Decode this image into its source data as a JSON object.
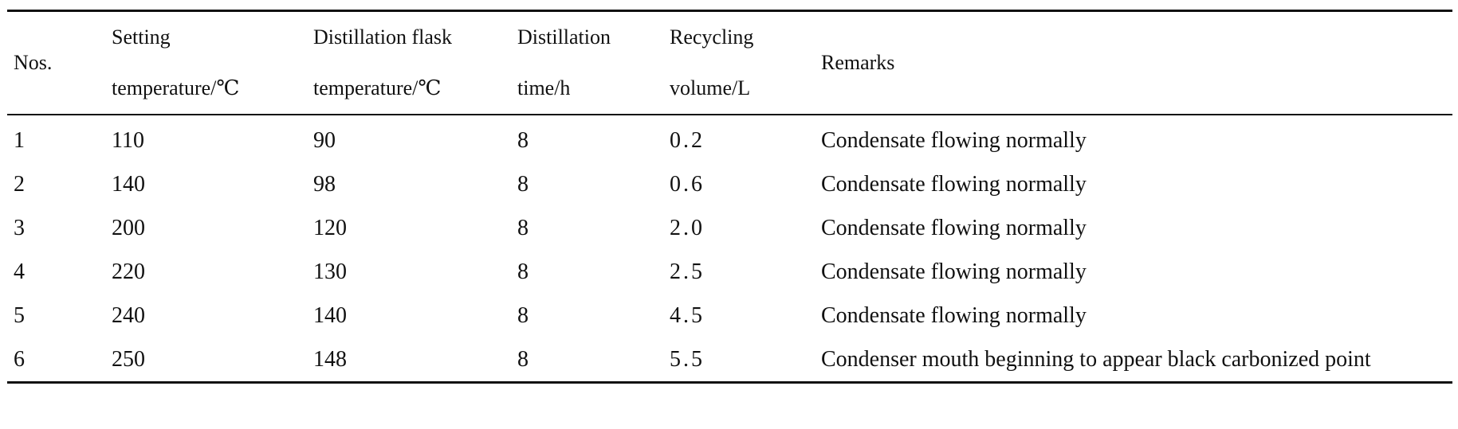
{
  "table": {
    "headers": [
      [
        "Nos."
      ],
      [
        "Setting",
        "temperature/℃"
      ],
      [
        "Distillation flask",
        "temperature/℃"
      ],
      [
        "Distillation",
        "time/h"
      ],
      [
        "Recycling",
        "volume/L"
      ],
      [
        "Remarks"
      ]
    ],
    "rows": [
      [
        "1",
        "110",
        "90",
        "8",
        "0.2",
        "Condensate flowing normally"
      ],
      [
        "2",
        "140",
        "98",
        "8",
        "0.6",
        "Condensate flowing normally"
      ],
      [
        "3",
        "200",
        "120",
        "8",
        "2.0",
        "Condensate flowing normally"
      ],
      [
        "4",
        "220",
        "130",
        "8",
        "2.5",
        "Condensate flowing normally"
      ],
      [
        "5",
        "240",
        "140",
        "8",
        "4.5",
        "Condensate flowing normally"
      ],
      [
        "6",
        "250",
        "148",
        "8",
        "5.5",
        "Condenser mouth beginning to appear black carbonized point"
      ]
    ]
  }
}
